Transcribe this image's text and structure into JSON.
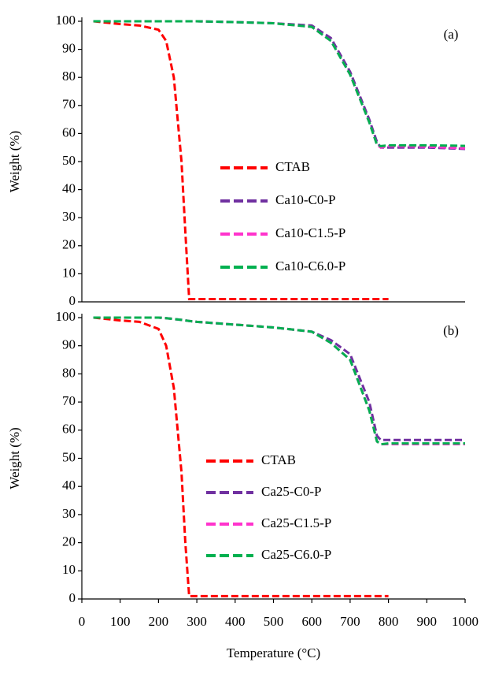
{
  "chart_data": [
    {
      "type": "line",
      "label": "(a)",
      "ylabel": "Weight (%)",
      "xlim": [
        0,
        1000
      ],
      "ylim": [
        0,
        100
      ],
      "yticks": [
        0,
        10,
        20,
        30,
        40,
        50,
        60,
        70,
        80,
        90,
        100
      ],
      "x": [
        30,
        100,
        150,
        200,
        220,
        240,
        260,
        270,
        280,
        300,
        400,
        500,
        600,
        650,
        700,
        750,
        770,
        780,
        800,
        900,
        1000
      ],
      "series": [
        {
          "name": "CTAB",
          "color": "#ff0000",
          "values": [
            100,
            99,
            98.5,
            97,
            93,
            80,
            50,
            25,
            1,
            1,
            1,
            1,
            1,
            1,
            1,
            1,
            1,
            1,
            1,
            null,
            null
          ]
        },
        {
          "name": "Ca10-C0-P",
          "color": "#7030a0",
          "values": [
            100,
            100,
            100,
            100,
            100,
            100,
            100,
            100,
            100,
            100,
            99.7,
            99.3,
            98.5,
            94,
            82,
            65,
            57,
            55,
            55,
            55,
            54.5
          ]
        },
        {
          "name": "Ca10-C1.5-P",
          "color": "#ff33cc",
          "values": [
            100,
            100,
            100,
            100,
            100,
            100,
            100,
            100,
            100,
            100,
            99.7,
            99.3,
            98,
            93,
            81,
            64,
            56,
            55,
            55.5,
            55.3,
            54.7
          ]
        },
        {
          "name": "Ca10-C6.0-P",
          "color": "#00b050",
          "values": [
            100,
            100,
            100,
            100,
            100,
            100,
            100,
            100,
            100,
            100,
            99.7,
            99.3,
            98,
            93,
            81,
            64,
            56,
            55.5,
            55.8,
            55.8,
            55.6
          ]
        }
      ]
    },
    {
      "type": "line",
      "label": "(b)",
      "ylabel": "Weight (%)",
      "xlabel": "Temperature (°C)",
      "xlim": [
        0,
        1000
      ],
      "xticks": [
        0,
        100,
        200,
        300,
        400,
        500,
        600,
        700,
        800,
        900,
        1000
      ],
      "ylim": [
        0,
        100
      ],
      "yticks": [
        0,
        10,
        20,
        30,
        40,
        50,
        60,
        70,
        80,
        90,
        100
      ],
      "x": [
        30,
        100,
        150,
        200,
        220,
        240,
        260,
        270,
        280,
        300,
        400,
        500,
        600,
        650,
        700,
        750,
        770,
        780,
        800,
        900,
        1000
      ],
      "series": [
        {
          "name": "CTAB",
          "color": "#ff0000",
          "values": [
            100,
            99,
            98.5,
            96,
            90,
            75,
            45,
            20,
            1,
            1,
            1,
            1,
            1,
            1,
            1,
            1,
            1,
            1,
            1,
            null,
            null
          ]
        },
        {
          "name": "Ca25-C0-P",
          "color": "#7030a0",
          "values": [
            100,
            100,
            100,
            100,
            99.8,
            99.5,
            99.2,
            99,
            98.8,
            98.5,
            97.5,
            96.5,
            95,
            92,
            87,
            70,
            58,
            56.5,
            56.5,
            56.5,
            56.5
          ]
        },
        {
          "name": "Ca25-C1.5-P",
          "color": "#ff33cc",
          "values": [
            100,
            100,
            100,
            100,
            99.8,
            99.5,
            99.2,
            99,
            98.8,
            98.5,
            97.5,
            96.5,
            95,
            91,
            85,
            67,
            56,
            55,
            55,
            55,
            55
          ]
        },
        {
          "name": "Ca25-C6.0-P",
          "color": "#00b050",
          "values": [
            100,
            100,
            100,
            100,
            99.8,
            99.5,
            99.2,
            99,
            98.8,
            98.5,
            97.5,
            96.5,
            95,
            91,
            85,
            67,
            56,
            55,
            55.3,
            55.3,
            55.3
          ]
        }
      ]
    }
  ]
}
